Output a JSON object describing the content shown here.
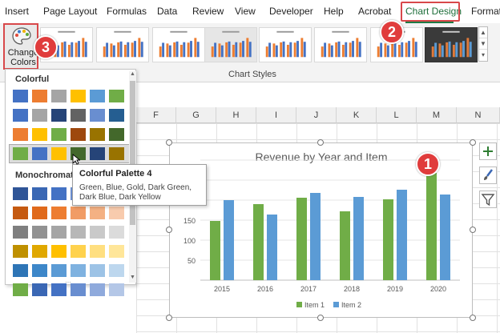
{
  "ribbon": {
    "tabs": [
      {
        "label": "Insert"
      },
      {
        "label": "Page Layout"
      },
      {
        "label": "Formulas"
      },
      {
        "label": "Data"
      },
      {
        "label": "Review"
      },
      {
        "label": "View"
      },
      {
        "label": "Developer"
      },
      {
        "label": "Help"
      },
      {
        "label": "Acrobat"
      },
      {
        "label": "Chart Design",
        "active": true
      },
      {
        "label": "Format"
      }
    ],
    "change_colors": {
      "line1": "Change",
      "line2": "Colors ⌄"
    },
    "group_label": "Chart Styles"
  },
  "columns": [
    "F",
    "G",
    "H",
    "I",
    "J",
    "K",
    "L",
    "M",
    "N"
  ],
  "dropdown": {
    "colorful_heading": "Colorful",
    "monochromatic_heading": "Monochromatic",
    "colorful_rows": [
      [
        "#4472c4",
        "#ed7d31",
        "#a5a5a5",
        "#ffc000",
        "#5b9bd5",
        "#70ad47"
      ],
      [
        "#4472c4",
        "#a5a5a5",
        "#264478",
        "#636363",
        "#698ed0",
        "#255e91"
      ],
      [
        "#ed7d31",
        "#ffc000",
        "#70ad47",
        "#9e480e",
        "#997300",
        "#43682b"
      ],
      [
        "#70ad47",
        "#4472c4",
        "#ffc000",
        "#43682b",
        "#264478",
        "#997300"
      ]
    ],
    "mono_rows": [
      [
        "#2f5597",
        "#3a67b4",
        "#4472c4",
        "#698ed0",
        "#8faadc",
        "#b4c7e7"
      ],
      [
        "#c55a11",
        "#e06a1c",
        "#ed7d31",
        "#f19c65",
        "#f4b183",
        "#f8cbad"
      ],
      [
        "#7f7f7f",
        "#929292",
        "#a5a5a5",
        "#b7b7b7",
        "#c9c9c9",
        "#dbdbdb"
      ],
      [
        "#bf9000",
        "#e0a800",
        "#ffc000",
        "#ffd24d",
        "#ffdf80",
        "#ffe699"
      ],
      [
        "#2e75b6",
        "#3d87c9",
        "#5b9bd5",
        "#7fb2e0",
        "#9dc3e6",
        "#bdd7ee"
      ],
      [
        "#70ad47",
        "#3a67b4",
        "#4472c4",
        "#698ed0",
        "#8faadc",
        "#b4c7e7"
      ]
    ],
    "selected_row": 3
  },
  "tooltip": {
    "title": "Colorful Palette 4",
    "description": "Green, Blue, Gold, Dark Green, Dark Blue, Dark Yellow"
  },
  "badges": {
    "one": "1",
    "two": "2",
    "three": "3"
  },
  "colors": {
    "item1": "#70ad47",
    "item2": "#5b9bd5",
    "accent_red": "#e03c3c",
    "tab_green": "#1e7a45"
  },
  "chart_data": {
    "type": "bar",
    "title": "Revenue by Year and Item",
    "categories": [
      "2015",
      "2016",
      "2017",
      "2018",
      "2019",
      "2020"
    ],
    "series": [
      {
        "name": "Item 1",
        "values": [
          148,
          190,
          206,
          172,
          202,
          268
        ]
      },
      {
        "name": "Item 2",
        "values": [
          200,
          164,
          218,
          208,
          226,
          214
        ]
      }
    ],
    "y_tick_labels": [
      "50",
      "100",
      "150",
      "200"
    ],
    "ylim": [
      0,
      300
    ],
    "legend": "bottom",
    "grid": true
  }
}
